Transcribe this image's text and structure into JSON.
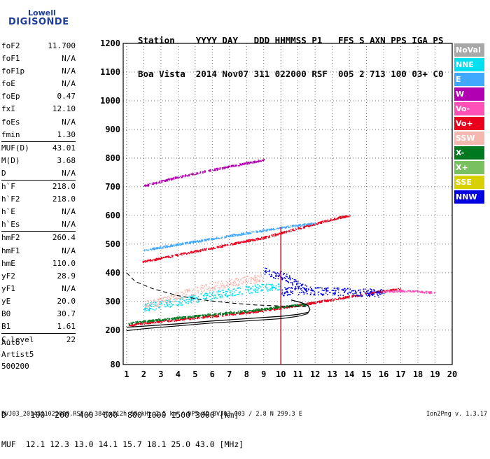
{
  "logo": {
    "line1": "Lowell",
    "line2": "DIGISONDE"
  },
  "header": {
    "line1": "Station    YYYY DAY   DDD HHMMSS P1   FFS S AXN PPS IGA PS",
    "line2": "Boa Vista  2014 Nov07 311 022000 RSF  005 2 713 100 03+ C0"
  },
  "params": [
    {
      "label": "foF2",
      "value": "11.700",
      "sep": false
    },
    {
      "label": "foF1",
      "value": "N/A",
      "sep": false
    },
    {
      "label": "foF1p",
      "value": "N/A",
      "sep": false
    },
    {
      "label": "foE",
      "value": "N/A",
      "sep": false
    },
    {
      "label": "foEp",
      "value": "0.47",
      "sep": false
    },
    {
      "label": "fxI",
      "value": "12.10",
      "sep": false
    },
    {
      "label": "foEs",
      "value": "N/A",
      "sep": false
    },
    {
      "label": "fmin",
      "value": "1.30",
      "sep": false
    },
    {
      "label": "MUF(D)",
      "value": "43.01",
      "sep": true
    },
    {
      "label": "M(D)",
      "value": "3.68",
      "sep": false
    },
    {
      "label": "D",
      "value": "N/A",
      "sep": false
    },
    {
      "label": "h`F",
      "value": "218.0",
      "sep": true
    },
    {
      "label": "h`F2",
      "value": "218.0",
      "sep": false
    },
    {
      "label": "h`E",
      "value": "N/A",
      "sep": false
    },
    {
      "label": "h`Es",
      "value": "N/A",
      "sep": false
    },
    {
      "label": "hmF2",
      "value": "260.4",
      "sep": true
    },
    {
      "label": "hmF1",
      "value": "N/A",
      "sep": false
    },
    {
      "label": "hmE",
      "value": "110.0",
      "sep": false
    },
    {
      "label": "yF2",
      "value": "28.9",
      "sep": false
    },
    {
      "label": "yF1",
      "value": "N/A",
      "sep": false
    },
    {
      "label": "yE",
      "value": "20.0",
      "sep": false
    },
    {
      "label": "B0",
      "value": "30.7",
      "sep": false
    },
    {
      "label": "B1",
      "value": "1.61",
      "sep": false
    },
    {
      "label": "C-level",
      "value": "22",
      "sep": true
    }
  ],
  "extra": [
    "Auto:",
    "Artist5",
    "500200"
  ],
  "legend": [
    {
      "label": "NoVal",
      "color": "#a8a8a8"
    },
    {
      "label": "NNE",
      "color": "#00e0f0"
    },
    {
      "label": "E",
      "color": "#40a8ff"
    },
    {
      "label": "W",
      "color": "#b000b0"
    },
    {
      "label": "Vo-",
      "color": "#ff50b8"
    },
    {
      "label": "Vo+",
      "color": "#e8001c"
    },
    {
      "label": "SSW",
      "color": "#f5b8b0"
    },
    {
      "label": "X-",
      "color": "#007820"
    },
    {
      "label": "X+",
      "color": "#78c060"
    },
    {
      "label": "SSE",
      "color": "#d8d000"
    },
    {
      "label": "NNW",
      "color": "#0000e0"
    }
  ],
  "bottom": {
    "line1": "D     100  200  400  600  800 1000 1500 3000 [km]",
    "line2": "MUF  12.1 12.3 13.0 14.1 15.7 18.1 25.0 43.0 [MHz]"
  },
  "footer": "BVJ03_2014311022000.RSF / 384fx512h 50 kHz 2.5 km / DPS-4D BVJ03 003 / 2.8 N 299.3 E",
  "version": "Ion2Png v. 1.3.17",
  "chart_data": {
    "type": "scatter",
    "xlim": [
      0.8,
      20
    ],
    "ylim": [
      80,
      1200
    ],
    "xticks": [
      1,
      2,
      3,
      4,
      5,
      6,
      7,
      8,
      9,
      10,
      11,
      12,
      13,
      14,
      15,
      16,
      17,
      18,
      19,
      20
    ],
    "yticks": [
      80,
      200,
      300,
      400,
      500,
      600,
      700,
      800,
      900,
      1000,
      1100,
      1200
    ],
    "grid": true,
    "traces": [
      {
        "name": "O-trace F2",
        "color": "#e8001c",
        "x": [
          1.1,
          2,
          3,
          4,
          5,
          6,
          7,
          8,
          9,
          10,
          11,
          12,
          13,
          14,
          15,
          16,
          17
        ],
        "y": [
          218,
          226,
          232,
          238,
          244,
          250,
          256,
          262,
          270,
          279,
          288,
          298,
          308,
          318,
          328,
          338,
          345
        ]
      },
      {
        "name": "X-trace F2",
        "color": "#007820",
        "x": [
          1.1,
          2,
          4,
          6,
          8,
          10,
          11.5
        ],
        "y": [
          225,
          232,
          244,
          256,
          268,
          282,
          292
        ]
      },
      {
        "name": "Multi-hop 2F",
        "color": "#e8001c",
        "x": [
          1.9,
          3,
          4,
          5,
          6,
          7,
          8,
          9,
          10,
          11,
          12,
          13,
          14
        ],
        "y": [
          440,
          452,
          464,
          476,
          488,
          500,
          512,
          524,
          540,
          556,
          572,
          588,
          602
        ]
      },
      {
        "name": "Multi-hop 2F upper",
        "color": "#40a8ff",
        "x": [
          2,
          4,
          6,
          8,
          10,
          12
        ],
        "y": [
          480,
          500,
          520,
          540,
          558,
          575
        ]
      },
      {
        "name": "Multi-hop 3F",
        "color": "#b000b0",
        "x": [
          2,
          3,
          4,
          5,
          6,
          7,
          8,
          9
        ],
        "y": [
          705,
          720,
          735,
          748,
          760,
          772,
          784,
          795
        ]
      },
      {
        "name": "Spread F",
        "color": "#0000e0",
        "x": [
          10,
          11,
          12,
          13,
          14,
          15,
          16
        ],
        "y": [
          335,
          340,
          338,
          336,
          334,
          332,
          330
        ]
      },
      {
        "name": "Spread F upper",
        "color": "#0000e0",
        "x": [
          9,
          9.5,
          10,
          10.5,
          11,
          11.5
        ],
        "y": [
          405,
          398,
          392,
          378,
          362,
          350
        ]
      },
      {
        "name": "Oblique E",
        "color": "#00e0f0",
        "x": [
          2,
          3,
          4,
          5,
          6,
          7,
          8,
          9,
          10
        ],
        "y": [
          280,
          290,
          300,
          312,
          322,
          332,
          342,
          350,
          355
        ]
      },
      {
        "name": "Oblique SSW",
        "color": "#f5b8b0",
        "x": [
          2,
          3,
          4,
          5,
          6,
          7,
          8,
          9
        ],
        "y": [
          290,
          300,
          320,
          340,
          355,
          365,
          375,
          385
        ]
      },
      {
        "name": "Far echoes",
        "color": "#ff50b8",
        "x": [
          16,
          17,
          18,
          19
        ],
        "y": [
          335,
          338,
          336,
          332
        ]
      }
    ],
    "profile_solid": {
      "x": [
        1.0,
        2,
        4,
        6,
        8,
        10,
        11,
        11.6,
        11.7,
        11.6,
        11.2,
        10.6
      ],
      "y": [
        210,
        214,
        222,
        232,
        240,
        248,
        255,
        262,
        272,
        285,
        296,
        305
      ]
    },
    "profile_dashed": {
      "x": [
        1.0,
        1.5,
        2.5,
        4,
        5.5,
        7,
        8.5,
        10,
        11,
        11.5
      ],
      "y": [
        400,
        370,
        345,
        320,
        305,
        295,
        288,
        284,
        282,
        282
      ]
    },
    "profile_lower": {
      "x": [
        1.0,
        2,
        4,
        6,
        8,
        10,
        11,
        11.6
      ],
      "y": [
        198,
        205,
        215,
        225,
        232,
        240,
        248,
        258
      ]
    }
  }
}
